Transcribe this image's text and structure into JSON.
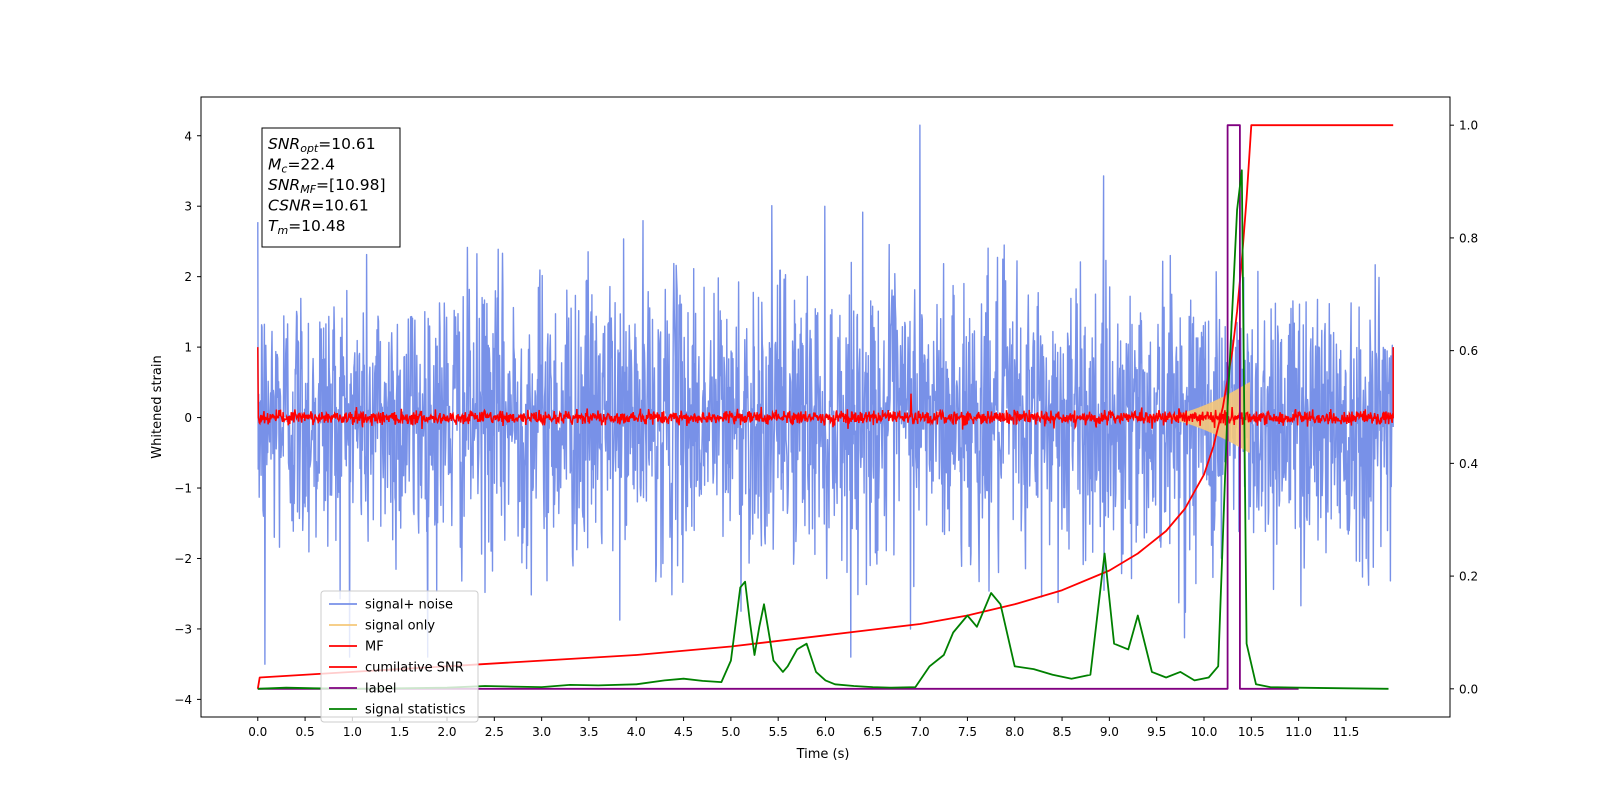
{
  "chart_data": {
    "type": "line",
    "xlabel": "Time (s)",
    "ylabel_left": "Whitened strain",
    "ylabel_right": "",
    "xlim": [
      -0.6,
      12.6
    ],
    "ylim_left": [
      -4.25,
      4.55
    ],
    "ylim_right": [
      -0.05,
      1.05
    ],
    "x_ticks": [
      "0.0",
      "0.5",
      "1.0",
      "1.5",
      "2.0",
      "2.5",
      "3.0",
      "3.5",
      "4.0",
      "4.5",
      "5.0",
      "5.5",
      "6.0",
      "6.5",
      "7.0",
      "7.5",
      "8.0",
      "8.5",
      "9.0",
      "9.5",
      "10.0",
      "10.5",
      "11.0",
      "11.5"
    ],
    "y_ticks_left": [
      "4",
      "3",
      "2",
      "1",
      "0",
      "−1",
      "−2",
      "−3",
      "−4"
    ],
    "y_ticks_right": [
      "1.0",
      "0.8",
      "0.6",
      "0.4",
      "0.2",
      "0.0"
    ],
    "grid": false,
    "annotation": {
      "lines": [
        {
          "main": "SNR",
          "sub": "opt",
          "rest": "=10.61"
        },
        {
          "main": "M",
          "sub": "c",
          "rest": "=22.4"
        },
        {
          "main": "SNR",
          "sub": "MF",
          "rest": "=[10.98]"
        },
        {
          "main": "CSNR",
          "sub": "",
          "rest": "=10.61"
        },
        {
          "main": "T",
          "sub": "m",
          "rest": "=10.48"
        }
      ]
    },
    "legend": {
      "location": "lower-left",
      "entries": [
        "signal+ noise",
        "signal only",
        "MF",
        "cumilative SNR",
        "label",
        "signal statistics"
      ]
    },
    "colors": {
      "signal_noise": "#7891e8",
      "signal_only": "#f5c87a",
      "mf": "#ff0000",
      "cumulative_snr": "#ff0000",
      "label": "#800080",
      "signal_statistics": "#008000"
    },
    "series": [
      {
        "name": "signal+ noise",
        "axis": "left",
        "style": "noise",
        "x_range": [
          0.0,
          12.0
        ],
        "sigma": 1.0,
        "peak_max": 4.15,
        "peak_min": -3.5
      },
      {
        "name": "signal only",
        "axis": "left",
        "style": "chirp",
        "x_range": [
          9.5,
          10.48
        ],
        "peak_amplitude": 0.5
      },
      {
        "name": "MF",
        "axis": "left",
        "style": "noise",
        "x_range": [
          0.0,
          12.0
        ],
        "sigma": 0.05,
        "edges": [
          1.0,
          1.0
        ]
      },
      {
        "name": "cumilative SNR",
        "axis": "right",
        "x": [
          0.0,
          0.02,
          1.0,
          2.0,
          3.0,
          4.0,
          5.0,
          6.0,
          6.5,
          7.0,
          7.5,
          8.0,
          8.5,
          9.0,
          9.3,
          9.6,
          9.8,
          9.9,
          10.0,
          10.1,
          10.2,
          10.3,
          10.35,
          10.4,
          10.45,
          10.5,
          12.0
        ],
        "y": [
          0.0,
          0.02,
          0.03,
          0.04,
          0.05,
          0.06,
          0.075,
          0.095,
          0.105,
          0.115,
          0.13,
          0.15,
          0.175,
          0.21,
          0.24,
          0.28,
          0.32,
          0.35,
          0.38,
          0.43,
          0.5,
          0.6,
          0.67,
          0.76,
          0.87,
          1.0,
          1.0
        ]
      },
      {
        "name": "label",
        "axis": "right",
        "x": [
          0.0,
          10.25,
          10.25,
          10.38,
          10.38,
          10.48,
          10.48,
          11.0
        ],
        "y": [
          0.0,
          0.0,
          1.0,
          1.0,
          0.0,
          0.0,
          0.0,
          0.0
        ]
      },
      {
        "name": "signal statistics",
        "axis": "right",
        "x": [
          0.0,
          0.3,
          0.6,
          1.0,
          1.5,
          2.0,
          2.4,
          2.7,
          3.0,
          3.3,
          3.6,
          4.0,
          4.3,
          4.5,
          4.7,
          4.9,
          5.0,
          5.1,
          5.15,
          5.2,
          5.25,
          5.3,
          5.35,
          5.45,
          5.55,
          5.6,
          5.7,
          5.8,
          5.9,
          6.0,
          6.1,
          6.3,
          6.5,
          6.7,
          6.95,
          7.1,
          7.25,
          7.35,
          7.5,
          7.6,
          7.75,
          7.85,
          8.0,
          8.2,
          8.4,
          8.6,
          8.8,
          8.95,
          9.05,
          9.2,
          9.3,
          9.45,
          9.6,
          9.75,
          9.9,
          10.05,
          10.15,
          10.25,
          10.35,
          10.4,
          10.45,
          10.55,
          10.7,
          11.0,
          11.5,
          11.95
        ],
        "y": [
          0.0,
          0.002,
          0.001,
          0.0,
          0.001,
          0.002,
          0.005,
          0.004,
          0.003,
          0.007,
          0.006,
          0.008,
          0.015,
          0.018,
          0.014,
          0.012,
          0.05,
          0.18,
          0.19,
          0.12,
          0.06,
          0.11,
          0.15,
          0.05,
          0.03,
          0.04,
          0.07,
          0.08,
          0.03,
          0.015,
          0.008,
          0.005,
          0.003,
          0.002,
          0.003,
          0.04,
          0.06,
          0.1,
          0.13,
          0.11,
          0.17,
          0.15,
          0.04,
          0.035,
          0.025,
          0.018,
          0.025,
          0.24,
          0.08,
          0.07,
          0.13,
          0.03,
          0.02,
          0.03,
          0.015,
          0.02,
          0.04,
          0.5,
          0.85,
          0.92,
          0.08,
          0.008,
          0.003,
          0.002,
          0.001,
          0.0
        ]
      }
    ]
  }
}
